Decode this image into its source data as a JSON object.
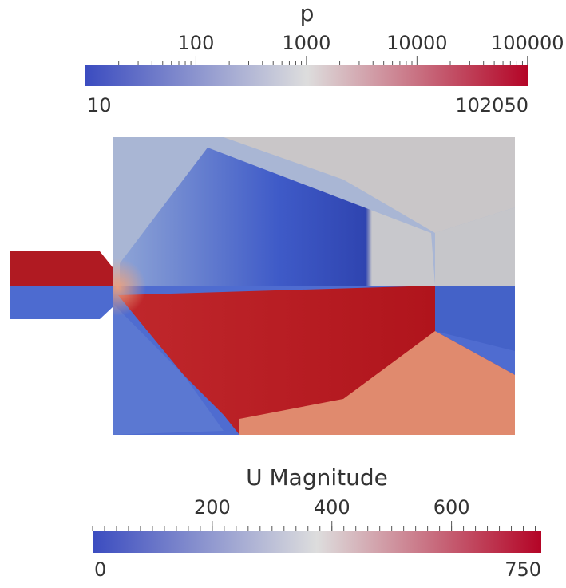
{
  "chart_data": [
    {
      "type": "colorbar",
      "title": "p",
      "log_scale": true,
      "xlim": [
        10,
        102050
      ],
      "xticks": [
        100,
        1000,
        10000,
        100000
      ],
      "colors": [
        "#3b4cc0",
        "#dddddd",
        "#b40426"
      ]
    },
    {
      "type": "colorbar",
      "title": "U Magnitude",
      "log_scale": false,
      "xlim": [
        0,
        750
      ],
      "xticks": [
        200,
        400,
        600
      ],
      "colors": [
        "#3b4cc0",
        "#dddddd",
        "#b40426"
      ]
    }
  ]
}
